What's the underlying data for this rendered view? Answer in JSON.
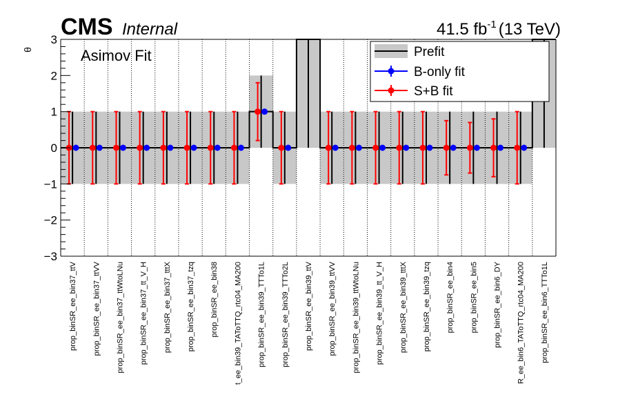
{
  "header": {
    "experiment": "CMS",
    "status": "Internal",
    "lumi_value": "41.5 fb",
    "lumi_exp": "-1",
    "energy": "(13 TeV)",
    "fit_label": "Asimov Fit"
  },
  "chart_data": {
    "type": "scatter",
    "ylabel": "θ",
    "xlabel": "",
    "ylim": [
      -3,
      3
    ],
    "yticks": [
      -3,
      -2,
      -1,
      0,
      1,
      2,
      3
    ],
    "ytick_labels": [
      "−3",
      "−2",
      "−1",
      "0",
      "1",
      "2",
      "3"
    ],
    "grid": "vertical dotted separators",
    "legend_position": "top-right",
    "legend": [
      {
        "name": "Prefit",
        "color": "#000000",
        "band_color": "#c8c8c8"
      },
      {
        "name": "B-only fit",
        "color": "#0000ff"
      },
      {
        "name": "S+B fit",
        "color": "#ff0000"
      }
    ],
    "categories": [
      "prop_binSR_ee_bin37_ttV",
      "prop_binSR_ee_bin37_ttVV",
      "prop_binSR_ee_bin37_ttWtoLNu",
      "prop_binSR_ee_bin37_tt_V_H",
      "prop_binSR_ee_bin37_tttX",
      "prop_binSR_ee_bin37_tzq",
      "prop_binSR_ee_bin38",
      "t_ee_bin39_TAToTTQ_rtc04_MA200",
      "prop_binSR_ee_bin39_TTTo1L",
      "prop_binSR_ee_bin39_TTTo2L",
      "prop_binSR_ee_bin39_ttV",
      "prop_binSR_ee_bin39_ttVV",
      "prop_binSR_ee_bin39_ttWtoLNu",
      "prop_binSR_ee_bin39_tt_V_H",
      "prop_binSR_ee_bin39_tttX",
      "prop_binSR_ee_bin39_tzq",
      "prop_binSR_ee_bin4",
      "prop_binSR_ee_bin5",
      "prop_binSR_ee_bin6_DY",
      "R_ee_bin6_TAToTTQ_rtc04_MA200",
      "prop_binSR_ee_bin6_TTTo1L"
    ],
    "prefit": [
      {
        "center": 0,
        "lo": -1,
        "hi": 1
      },
      {
        "center": 0,
        "lo": -1,
        "hi": 1
      },
      {
        "center": 0,
        "lo": -1,
        "hi": 1
      },
      {
        "center": 0,
        "lo": -1,
        "hi": 1
      },
      {
        "center": 0,
        "lo": -1,
        "hi": 1
      },
      {
        "center": 0,
        "lo": -1,
        "hi": 1
      },
      {
        "center": 0,
        "lo": -1,
        "hi": 1
      },
      {
        "center": 0,
        "lo": -1,
        "hi": 1
      },
      {
        "center": 1,
        "lo": 0,
        "hi": 2
      },
      {
        "center": 0,
        "lo": -1,
        "hi": 1
      },
      {
        "center": 3,
        "lo": 0,
        "hi": 6
      },
      {
        "center": 0,
        "lo": -1,
        "hi": 1
      },
      {
        "center": 0,
        "lo": -1,
        "hi": 1
      },
      {
        "center": 0,
        "lo": -1,
        "hi": 1
      },
      {
        "center": 0,
        "lo": -1,
        "hi": 1
      },
      {
        "center": 0,
        "lo": -1,
        "hi": 1
      },
      {
        "center": 0,
        "lo": -1,
        "hi": 1
      },
      {
        "center": 0,
        "lo": -1,
        "hi": 1
      },
      {
        "center": 0,
        "lo": -1,
        "hi": 1
      },
      {
        "center": 0,
        "lo": -1,
        "hi": 1
      },
      {
        "center": 3,
        "lo": 0,
        "hi": 6
      }
    ],
    "series": [
      {
        "name": "B-only fit",
        "values": [
          0,
          0,
          0,
          0,
          0,
          0,
          0,
          0,
          1,
          0,
          null,
          0,
          0,
          0,
          0,
          0,
          0,
          0,
          0,
          0,
          null
        ]
      },
      {
        "name": "S+B fit",
        "values": [
          0,
          0,
          0,
          0,
          0,
          0,
          0,
          0,
          1,
          0,
          null,
          0,
          0,
          0,
          0,
          0,
          0,
          0,
          0,
          0,
          null
        ],
        "err_lo": [
          1,
          1,
          1,
          1,
          1,
          1,
          1,
          1,
          0.8,
          1,
          null,
          1,
          1,
          1,
          1,
          1,
          0.75,
          0.7,
          0.8,
          1,
          null
        ],
        "err_hi": [
          1,
          1,
          1,
          1,
          1,
          1,
          1,
          1,
          0.8,
          1,
          null,
          1,
          1,
          1,
          1,
          1,
          0.75,
          0.7,
          0.8,
          1,
          null
        ]
      }
    ]
  }
}
